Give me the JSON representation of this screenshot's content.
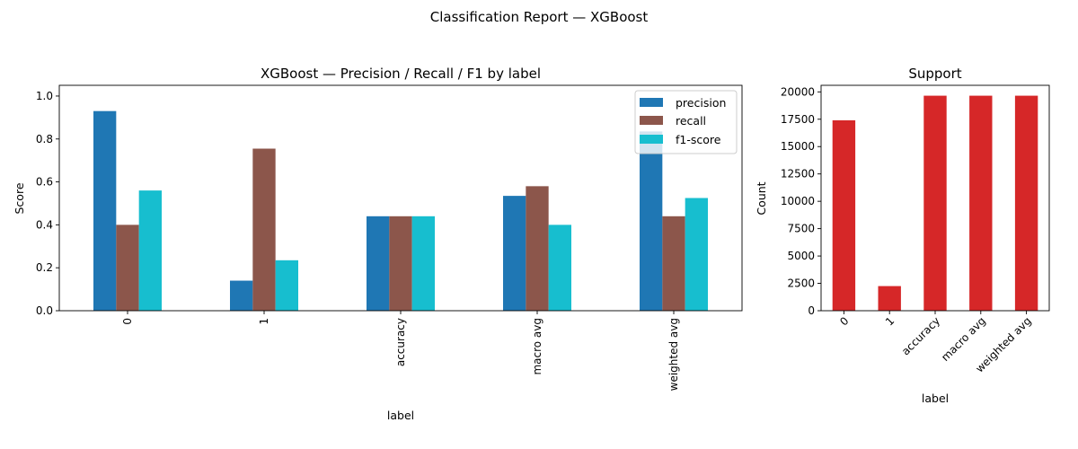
{
  "suptitle": "Classification Report — XGBoost",
  "chart_data": [
    {
      "type": "bar",
      "title": "XGBoost — Precision / Recall / F1 by label",
      "xlabel": "label",
      "ylabel": "Score",
      "ylim": [
        0,
        1.05
      ],
      "yticks": [
        "0.0",
        "0.2",
        "0.4",
        "0.6",
        "0.8",
        "1.0"
      ],
      "categories": [
        "0",
        "1",
        "accuracy",
        "macro avg",
        "weighted avg"
      ],
      "series": [
        {
          "name": "precision",
          "color": "#1f77b4",
          "values": [
            0.93,
            0.14,
            0.44,
            0.535,
            0.835
          ]
        },
        {
          "name": "recall",
          "color": "#8c564b",
          "values": [
            0.4,
            0.755,
            0.44,
            0.58,
            0.44
          ]
        },
        {
          "name": "f1-score",
          "color": "#17becf",
          "values": [
            0.56,
            0.235,
            0.44,
            0.4,
            0.525
          ]
        }
      ],
      "legend_position": "top-right",
      "tick_rotation": "vertical",
      "grid": false
    },
    {
      "type": "bar",
      "title": "Support",
      "xlabel": "label",
      "ylabel": "Count",
      "ylim": [
        0,
        20600
      ],
      "yticks": [
        "0",
        "2500",
        "5000",
        "7500",
        "10000",
        "12500",
        "15000",
        "17500",
        "20000"
      ],
      "categories": [
        "0",
        "1",
        "accuracy",
        "macro avg",
        "weighted avg"
      ],
      "series": [
        {
          "color": "#d62728",
          "values": [
            17400,
            2250,
            19650,
            19650,
            19650
          ]
        }
      ],
      "tick_rotation": "45 degrees",
      "grid": false
    }
  ]
}
